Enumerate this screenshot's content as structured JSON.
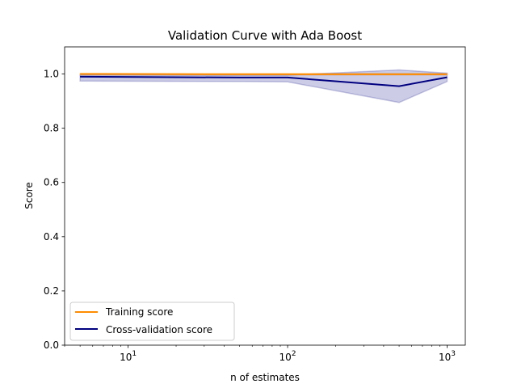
{
  "chart_data": {
    "type": "line",
    "title": "Validation Curve with Ada Boost",
    "xlabel": "n of estimates",
    "ylabel": "Score",
    "xscale": "log",
    "xlim": [
      4,
      1300
    ],
    "ylim": [
      0.0,
      1.1
    ],
    "x_ticks": [
      {
        "value": 10,
        "base": "10",
        "exp": "1"
      },
      {
        "value": 100,
        "base": "10",
        "exp": "2"
      },
      {
        "value": 1000,
        "base": "10",
        "exp": "3"
      }
    ],
    "y_ticks": [
      {
        "value": 0.0,
        "label": "0.0"
      },
      {
        "value": 0.2,
        "label": "0.2"
      },
      {
        "value": 0.4,
        "label": "0.4"
      },
      {
        "value": 0.6,
        "label": "0.6"
      },
      {
        "value": 0.8,
        "label": "0.8"
      },
      {
        "value": 1.0,
        "label": "1.0"
      }
    ],
    "grid": false,
    "legend_position": "lower-left",
    "x": [
      5,
      50,
      100,
      500,
      1000
    ],
    "series": [
      {
        "name": "Training score",
        "color": "#ff8c00",
        "values": [
          1.0,
          0.999,
          0.999,
          0.999,
          0.999
        ],
        "band_lower": [
          0.996,
          0.996,
          0.996,
          0.996,
          0.996
        ],
        "band_upper": [
          1.002,
          1.002,
          1.002,
          1.002,
          1.002
        ]
      },
      {
        "name": "Cross-validation score",
        "color": "#000080",
        "values": [
          0.99,
          0.987,
          0.987,
          0.955,
          0.988
        ],
        "band_lower": [
          0.974,
          0.972,
          0.971,
          0.895,
          0.972
        ],
        "band_upper": [
          0.997,
          0.996,
          0.996,
          1.015,
          1.003
        ]
      }
    ]
  }
}
